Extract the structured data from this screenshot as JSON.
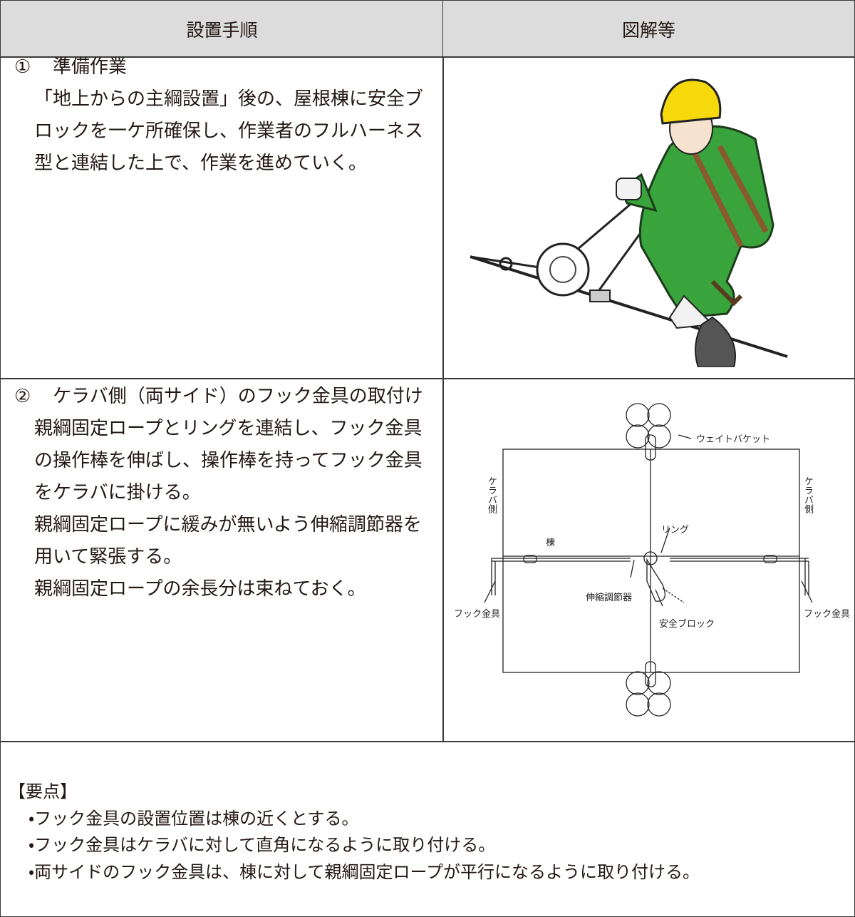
{
  "table": {
    "header": [
      "設置手順",
      "図解等"
    ],
    "rows": [
      {
        "step": {
          "number": "①",
          "title": "準備作業"
        },
        "lines": [
          "「地上からの主綱設置」後の、屋根棟に安全ブ",
          "ロックを一ケ所確保し、作業者のフルハーネス",
          "型と連結した上で、作業を進めていく。"
        ]
      },
      {
        "step": {
          "number": "②",
          "title": "ケラバ側（両サイド）のフック金具の取付け"
        },
        "lines": [
          "親綱固定ロープとリングを連結し、フック金具",
          "の操作棒を伸ばし、操作棒を持ってフック金具",
          "をケラバに掛ける。",
          "親綱固定ロープに緩みが無いよう伸縮調節器を",
          "用いて緊張する。",
          "親綱固定ロープの余長分は束ねておく。"
        ],
        "diagram_labels": {
          "weight_bucket": "ウェイトバケット",
          "keraba_left": "ケラバ側",
          "keraba_right": "ケラバ側",
          "ridge": "棟",
          "ring": "リング",
          "adjuster": "伸縮調節器",
          "safety_block": "安全ブロック",
          "hook_left": "フック金具",
          "hook_right": "フック金具"
        }
      }
    ]
  },
  "notes": {
    "heading": "【要点】",
    "items": [
      "・フック金具の設置位置は棟の近くとする。",
      "・フック金具はケラバに対して直角になるように取り付ける。",
      "・両サイドのフック金具は、棟に対して親綱固定ロープが平行になるように取り付ける。"
    ]
  }
}
